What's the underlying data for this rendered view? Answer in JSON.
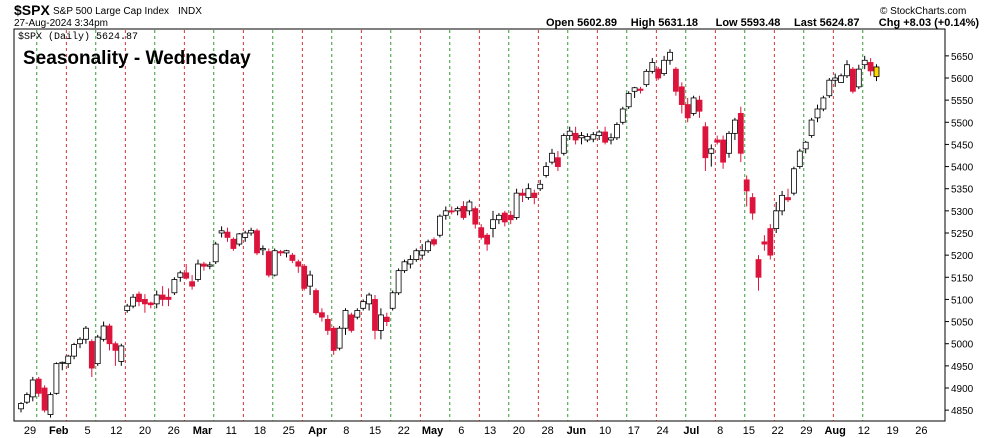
{
  "header": {
    "symbol": "$SPX",
    "name": "S&P 500 Large Cap Index",
    "exchange": "INDX",
    "date": "27-Aug-2024 3:34pm",
    "source": "© StockCharts.com",
    "stats": [
      {
        "label": "Open",
        "value": "5602.89"
      },
      {
        "label": "High",
        "value": "5631.18"
      },
      {
        "label": "Low",
        "value": "5593.48"
      },
      {
        "label": "Last",
        "value": "5624.87"
      },
      {
        "label": "Chg",
        "value": "+8.03 (+0.14%)"
      }
    ]
  },
  "annotation": "Seasonality - Wednesday",
  "legend": "$SPX (Daily) 5624.87",
  "colors": {
    "up": "#ffffff",
    "down": "#dc143c",
    "text_blue": "#0000dd",
    "green_line": "#008000",
    "red_line": "#cc0000",
    "last_candle": "#ffd700"
  },
  "chart_data": {
    "type": "candlestick",
    "ylim": [
      4830,
      5670
    ],
    "yticks": [
      4850,
      4900,
      4950,
      5000,
      5050,
      5100,
      5150,
      5200,
      5250,
      5300,
      5350,
      5400,
      5450,
      5500,
      5550,
      5600,
      5650
    ],
    "xlabels": [
      "29",
      "Feb",
      "5",
      "12",
      "20",
      "26",
      "Mar",
      "11",
      "18",
      "25",
      "Apr",
      "8",
      "15",
      "22",
      "May",
      "6",
      "13",
      "20",
      "28",
      "Jun",
      "10",
      "17",
      "24",
      "Jul",
      "8",
      "15",
      "22",
      "29",
      "Aug",
      "12",
      "19",
      "26"
    ],
    "xlabel_bold": [
      "Feb",
      "Mar",
      "Apr",
      "May",
      "Jun",
      "Jul",
      "Aug"
    ],
    "candles": [
      [
        4853,
        4868,
        4845,
        4865
      ],
      [
        4868,
        4890,
        4864,
        4885
      ],
      [
        4880,
        4925,
        4870,
        4918
      ],
      [
        4920,
        4925,
        4880,
        4888
      ],
      [
        4900,
        4906,
        4845,
        4850
      ],
      [
        4840,
        4890,
        4833,
        4885
      ],
      [
        4888,
        4958,
        4885,
        4955
      ],
      [
        4956,
        4960,
        4940,
        4958
      ],
      [
        4955,
        4975,
        4945,
        4972
      ],
      [
        4972,
        5002,
        4965,
        4998
      ],
      [
        5000,
        5015,
        4990,
        5010
      ],
      [
        5010,
        5040,
        5000,
        5035
      ],
      [
        5005,
        5010,
        4925,
        4945
      ],
      [
        4955,
        5020,
        4950,
        5015
      ],
      [
        5010,
        5050,
        5005,
        5040
      ],
      [
        5040,
        5045,
        4985,
        5000
      ],
      [
        5000,
        5005,
        4950,
        4985
      ],
      [
        4960,
        5000,
        4950,
        4995
      ],
      [
        5075,
        5090,
        5070,
        5085
      ],
      [
        5085,
        5112,
        5080,
        5105
      ],
      [
        5112,
        5118,
        5085,
        5095
      ],
      [
        5100,
        5112,
        5070,
        5090
      ],
      [
        5092,
        5095,
        5080,
        5088
      ],
      [
        5090,
        5120,
        5080,
        5110
      ],
      [
        5110,
        5130,
        5085,
        5100
      ],
      [
        5105,
        5125,
        5085,
        5100
      ],
      [
        5115,
        5150,
        5110,
        5145
      ],
      [
        5150,
        5165,
        5140,
        5160
      ],
      [
        5160,
        5180,
        5145,
        5148
      ],
      [
        5140,
        5155,
        5122,
        5130
      ],
      [
        5145,
        5190,
        5140,
        5180
      ],
      [
        5180,
        5185,
        5165,
        5175
      ],
      [
        5175,
        5185,
        5168,
        5178
      ],
      [
        5185,
        5230,
        5180,
        5225
      ],
      [
        5250,
        5265,
        5240,
        5255
      ],
      [
        5252,
        5262,
        5230,
        5240
      ],
      [
        5236,
        5240,
        5210,
        5215
      ],
      [
        5225,
        5250,
        5220,
        5248
      ],
      [
        5240,
        5255,
        5230,
        5250
      ],
      [
        5250,
        5262,
        5244,
        5256
      ],
      [
        5255,
        5260,
        5200,
        5205
      ],
      [
        5212,
        5222,
        5200,
        5215
      ],
      [
        5208,
        5215,
        5150,
        5155
      ],
      [
        5155,
        5215,
        5152,
        5210
      ],
      [
        5208,
        5212,
        5198,
        5205
      ],
      [
        5205,
        5212,
        5195,
        5210
      ],
      [
        5200,
        5205,
        5182,
        5188
      ],
      [
        5185,
        5190,
        5160,
        5175
      ],
      [
        5175,
        5180,
        5120,
        5125
      ],
      [
        5130,
        5165,
        5110,
        5155
      ],
      [
        5120,
        5125,
        5065,
        5070
      ],
      [
        5070,
        5080,
        5050,
        5060
      ],
      [
        5055,
        5065,
        5020,
        5030
      ],
      [
        5035,
        5040,
        4975,
        4985
      ],
      [
        4990,
        5040,
        4985,
        5035
      ],
      [
        5035,
        5080,
        5020,
        5075
      ],
      [
        5065,
        5070,
        5025,
        5030
      ],
      [
        5060,
        5080,
        5055,
        5075
      ],
      [
        5080,
        5100,
        5075,
        5095
      ],
      [
        5090,
        5115,
        5075,
        5110
      ],
      [
        5100,
        5110,
        5010,
        5030
      ],
      [
        5030,
        5080,
        5010,
        5065
      ],
      [
        5060,
        5070,
        5040,
        5050
      ],
      [
        5080,
        5120,
        5075,
        5115
      ],
      [
        5115,
        5170,
        5110,
        5165
      ],
      [
        5165,
        5190,
        5160,
        5185
      ],
      [
        5180,
        5200,
        5170,
        5190
      ],
      [
        5190,
        5215,
        5185,
        5210
      ],
      [
        5200,
        5225,
        5190,
        5210
      ],
      [
        5210,
        5235,
        5205,
        5230
      ],
      [
        5235,
        5240,
        5220,
        5225
      ],
      [
        5245,
        5292,
        5240,
        5288
      ],
      [
        5290,
        5310,
        5280,
        5300
      ],
      [
        5300,
        5310,
        5292,
        5298
      ],
      [
        5300,
        5310,
        5290,
        5305
      ],
      [
        5310,
        5322,
        5280,
        5285
      ],
      [
        5300,
        5325,
        5290,
        5320
      ],
      [
        5305,
        5310,
        5260,
        5270
      ],
      [
        5262,
        5270,
        5235,
        5240
      ],
      [
        5245,
        5250,
        5210,
        5225
      ],
      [
        5260,
        5300,
        5240,
        5280
      ],
      [
        5280,
        5295,
        5270,
        5290
      ],
      [
        5295,
        5300,
        5265,
        5275
      ],
      [
        5290,
        5300,
        5270,
        5280
      ],
      [
        5285,
        5350,
        5280,
        5340
      ],
      [
        5340,
        5350,
        5320,
        5335
      ],
      [
        5330,
        5362,
        5325,
        5350
      ],
      [
        5340,
        5348,
        5315,
        5330
      ],
      [
        5350,
        5370,
        5345,
        5360
      ],
      [
        5380,
        5410,
        5375,
        5400
      ],
      [
        5410,
        5440,
        5405,
        5430
      ],
      [
        5420,
        5435,
        5390,
        5400
      ],
      [
        5430,
        5475,
        5425,
        5470
      ],
      [
        5470,
        5490,
        5460,
        5480
      ],
      [
        5475,
        5490,
        5450,
        5460
      ],
      [
        5465,
        5478,
        5450,
        5470
      ],
      [
        5460,
        5475,
        5455,
        5468
      ],
      [
        5462,
        5478,
        5455,
        5472
      ],
      [
        5470,
        5482,
        5460,
        5478
      ],
      [
        5478,
        5490,
        5450,
        5455
      ],
      [
        5460,
        5475,
        5450,
        5465
      ],
      [
        5465,
        5500,
        5460,
        5495
      ],
      [
        5500,
        5535,
        5495,
        5530
      ],
      [
        5535,
        5570,
        5530,
        5565
      ],
      [
        5570,
        5580,
        5555,
        5578
      ],
      [
        5575,
        5580,
        5565,
        5572
      ],
      [
        5585,
        5620,
        5580,
        5615
      ],
      [
        5615,
        5645,
        5610,
        5635
      ],
      [
        5620,
        5625,
        5595,
        5600
      ],
      [
        5610,
        5650,
        5605,
        5640
      ],
      [
        5640,
        5665,
        5630,
        5658
      ],
      [
        5620,
        5625,
        5560,
        5570
      ],
      [
        5580,
        5590,
        5520,
        5540
      ],
      [
        5540,
        5555,
        5500,
        5510
      ],
      [
        5520,
        5560,
        5515,
        5555
      ],
      [
        5550,
        5560,
        5510,
        5525
      ],
      [
        5490,
        5500,
        5390,
        5420
      ],
      [
        5430,
        5450,
        5400,
        5440
      ],
      [
        5460,
        5470,
        5450,
        5455
      ],
      [
        5460,
        5470,
        5395,
        5410
      ],
      [
        5430,
        5480,
        5420,
        5475
      ],
      [
        5475,
        5510,
        5460,
        5505
      ],
      [
        5520,
        5535,
        5410,
        5430
      ],
      [
        5370,
        5380,
        5310,
        5345
      ],
      [
        5330,
        5340,
        5280,
        5295
      ],
      [
        5190,
        5200,
        5120,
        5150
      ],
      [
        5230,
        5245,
        5210,
        5225
      ],
      [
        5260,
        5270,
        5190,
        5200
      ],
      [
        5260,
        5320,
        5250,
        5300
      ],
      [
        5300,
        5345,
        5290,
        5335
      ],
      [
        5330,
        5350,
        5320,
        5325
      ],
      [
        5340,
        5400,
        5335,
        5395
      ],
      [
        5400,
        5440,
        5395,
        5435
      ],
      [
        5440,
        5458,
        5430,
        5455
      ],
      [
        5470,
        5510,
        5465,
        5505
      ],
      [
        5510,
        5540,
        5500,
        5530
      ],
      [
        5530,
        5560,
        5525,
        5555
      ],
      [
        5560,
        5600,
        5555,
        5595
      ],
      [
        5595,
        5610,
        5580,
        5600
      ],
      [
        5590,
        5610,
        5590,
        5605
      ],
      [
        5605,
        5640,
        5600,
        5630
      ],
      [
        5620,
        5625,
        5565,
        5570
      ],
      [
        5580,
        5630,
        5575,
        5620
      ],
      [
        5630,
        5650,
        5620,
        5640
      ],
      [
        5635,
        5645,
        5605,
        5616
      ],
      [
        5603,
        5631,
        5593,
        5625
      ]
    ]
  }
}
